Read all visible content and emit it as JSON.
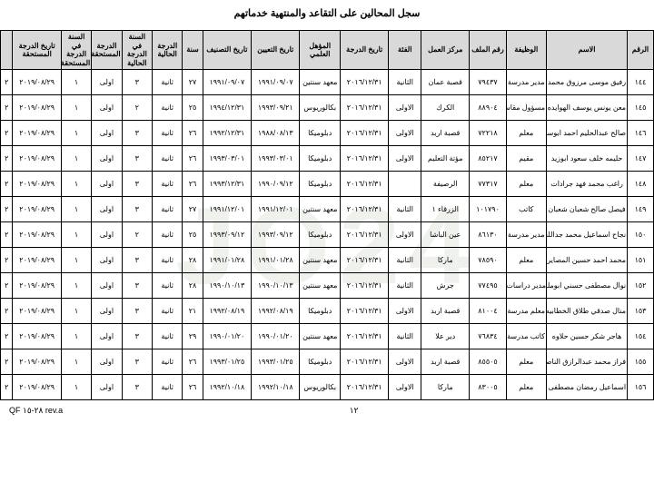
{
  "title": "سجل المحالين على التقاعد والمنتهية خدماتهم",
  "footer_left": "QF ٢٨-١٥ rev.a",
  "footer_center": "١٢",
  "headers": [
    "الرقم",
    "الاسم",
    "الوظيفة",
    "رقم الملف",
    "مركز العمل",
    "الفئة",
    "تاريخ الدرجة",
    "المؤهل العلمي",
    "تاريخ التعيين",
    "تاريخ التصنيف",
    "سنة",
    "الدرجة الحالية",
    "السنة في الدرجة الحالية",
    "الدرجة المستحقة",
    "السنة في الدرجة المستحقة",
    "تاريخ الدرجة المستحقة",
    ""
  ],
  "rows": [
    [
      "١٤٤",
      "رفيق موسى مرزوق محمد",
      "مدير مدرسة",
      "٧٩٤٣٧",
      "قصبة عمان",
      "الثانية",
      "٢٠١٦/١٢/٣١",
      "معهد سنتين",
      "١٩٩١/٠٩/٠٧",
      "١٩٩١/٠٩/٠٧",
      "٢٧",
      "ثانية",
      "٣",
      "اولى",
      "١",
      "٢٠١٩/٠٨/٢٩",
      "٢"
    ],
    [
      "١٤٥",
      "معن يونس يوسف الهوايده",
      "مسؤول مقاسم",
      "٨٨٩٠٤",
      "الكرك",
      "الاولى",
      "٢٠١٦/١٢/٣١",
      "بكالوريوس",
      "١٩٩٣/٠٩/٢١",
      "١٩٩٤/١٢/٣١",
      "٢٥",
      "ثانية",
      "٢",
      "اولى",
      "١",
      "٢٠١٩/٠٨/٢٩",
      "٢"
    ],
    [
      "١٤٦",
      "صالح عبدالحليم احمد ابوسرداته",
      "معلم",
      "٧٢٢١٨",
      "قصبة اربد",
      "الاولى",
      "٢٠١٦/١٢/٣١",
      "دبلوميكا",
      "١٩٨٨/٠٨/١٣",
      "١٩٩٢/١٢/٣١",
      "٢٦",
      "ثانية",
      "٣",
      "اولى",
      "١",
      "٢٠١٩/٠٨/٢٩",
      "٢"
    ],
    [
      "١٤٧",
      "حليمه خلف سعود ابوزيد",
      "مقيم",
      "٨٥٢١٧",
      "مؤتة التعليم",
      "الاولى",
      "٢٠١٦/١٢/٣١",
      "دبلوميكا",
      "١٩٩٣/٠٣/٠١",
      "١٩٩٣/٠٣/٠١",
      "٢٦",
      "ثانية",
      "٣",
      "اولى",
      "١",
      "٢٠١٩/٠٨/٢٩",
      "٢"
    ],
    [
      "١٤٨",
      "راغب محمد فهد جرادات",
      "معلم",
      "٧٧٣١٧",
      "الرصيفة",
      "",
      "٢٠١٦/١٢/٣١",
      "دبلوميكا",
      "١٩٩٠/٠٩/١٢",
      "١٩٩٣/١٢/٣١",
      "٢٦",
      "ثانية",
      "٣",
      "اولى",
      "١",
      "٢٠١٩/٠٨/٢٩",
      "٢"
    ],
    [
      "١٤٩",
      "فيصل صالح شعبان شعبان",
      "كاتب",
      "١٠١٧٩٠",
      "الزرقاء ١",
      "الثانية",
      "٢٠١٦/١٢/٣١",
      "معهد سنتين",
      "١٩٩١/١٢/٠١",
      "١٩٩١/١٢/٠١",
      "٢٧",
      "ثانية",
      "٣",
      "اولى",
      "١",
      "٢٠١٩/٠٨/٢٩",
      "٢"
    ],
    [
      "١٥٠",
      "نجاح اسماعيل محمد جدالله",
      "مدير مدرسة",
      "٨٦١٣٠",
      "عين الباشا",
      "الاولى",
      "٢٠١٦/١٢/٣١",
      "دبلوميكا",
      "١٩٩٣/٠٩/١٢",
      "١٩٩٣/٠٩/١٢",
      "٢٥",
      "ثانية",
      "٢",
      "اولى",
      "١",
      "٢٠١٩/٠٨/٢٩",
      "٢"
    ],
    [
      "١٥١",
      "محمد احمد حسين المصايره",
      "معلم",
      "٧٨٥٩٠",
      "ماركا",
      "الثانية",
      "٢٠١٦/١٢/٣١",
      "معهد سنتين",
      "١٩٩١/٠١/٢٨",
      "١٩٩١/٠١/٢٨",
      "٢٨",
      "ثانية",
      "٣",
      "اولى",
      "١",
      "٢٠١٩/٠٨/٢٩",
      "٢"
    ],
    [
      "١٥٢",
      "نوال مصطفى حسني ابوملحم",
      "مدير دراسات",
      "٧٧٤٩٥",
      "جرش",
      "الثانية",
      "٢٠١٦/١٢/٣١",
      "معهد سنتين",
      "١٩٩٠/١٠/١٣",
      "١٩٩٠/١٠/١٣",
      "٢٨",
      "ثانية",
      "٣",
      "اولى",
      "١",
      "٢٠١٩/٠٨/٢٩",
      "٢"
    ],
    [
      "١٥٣",
      "منال صدقي طلاق الخطابيه",
      "معلم مدرسة",
      "٨١٠٠٤",
      "قصبة اربد",
      "الاولى",
      "٢٠١٦/١٢/٣١",
      "دبلوميكا",
      "١٩٩٢/٠٨/١٩",
      "١٩٩٢/٠٨/١٩",
      "٢١",
      "ثانية",
      "٣",
      "اولى",
      "١",
      "٢٠١٩/٠٨/٢٩",
      "٢"
    ],
    [
      "١٥٤",
      "هاجر شكر حسين حلاوه",
      "كاتب مدرسة",
      "٧٦٨٣٤",
      "دير علا",
      "الثانية",
      "٢٠١٦/١٢/٣١",
      "معهد سنتين",
      "١٩٩٠/٠١/٢٠",
      "١٩٩٠/٠١/٢٠",
      "٢٩",
      "ثانية",
      "٣",
      "اولى",
      "١",
      "٢٠١٩/٠٨/٢٩",
      "٢"
    ],
    [
      "١٥٥",
      "فراز محمد عبدالرازق الناصر",
      "معلم",
      "٨٥٥٠٥",
      "قصبة اربد",
      "الاولى",
      "٢٠١٦/١٢/٣١",
      "دبلوميكا",
      "١٩٩٣/٠١/٢٥",
      "١٩٩٣/٠١/٢٥",
      "٢٦",
      "ثانية",
      "٣",
      "اولى",
      "١",
      "٢٠١٩/٠٨/٢٩",
      "٢"
    ],
    [
      "١٥٦",
      "اسماعيل رمضان مصطفى الحظه",
      "معلم",
      "٨٣٠٠٥",
      "ماركا",
      "الاولى",
      "٢٠١٦/١٢/٣١",
      "بكالوريوس",
      "١٩٩٢/١٠/١٨",
      "١٩٩٢/١٠/١٨",
      "٢٦",
      "ثانية",
      "٣",
      "اولى",
      "١",
      "٢٠١٩/٠٨/٢٩",
      "٢"
    ]
  ]
}
